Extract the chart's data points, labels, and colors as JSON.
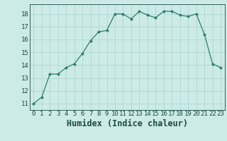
{
  "x": [
    0,
    1,
    2,
    3,
    4,
    5,
    6,
    7,
    8,
    9,
    10,
    11,
    12,
    13,
    14,
    15,
    16,
    17,
    18,
    19,
    20,
    21,
    22,
    23
  ],
  "y": [
    11.0,
    11.5,
    13.3,
    13.3,
    13.8,
    14.1,
    14.9,
    15.9,
    16.6,
    16.7,
    18.0,
    18.0,
    17.6,
    18.2,
    17.9,
    17.7,
    18.2,
    18.2,
    17.9,
    17.8,
    18.0,
    16.4,
    14.1,
    13.8
  ],
  "xlabel": "Humidex (Indice chaleur)",
  "xlim": [
    -0.5,
    23.5
  ],
  "ylim": [
    10.5,
    18.75
  ],
  "yticks": [
    11,
    12,
    13,
    14,
    15,
    16,
    17,
    18
  ],
  "xticks": [
    0,
    1,
    2,
    3,
    4,
    5,
    6,
    7,
    8,
    9,
    10,
    11,
    12,
    13,
    14,
    15,
    16,
    17,
    18,
    19,
    20,
    21,
    22,
    23
  ],
  "line_color": "#2e7d6e",
  "marker": "D",
  "marker_size": 2.2,
  "bg_color": "#cceae7",
  "grid_color": "#b0d8d4",
  "tick_fontsize": 6.5,
  "xlabel_fontsize": 8.5,
  "label_color": "#1a4a45"
}
